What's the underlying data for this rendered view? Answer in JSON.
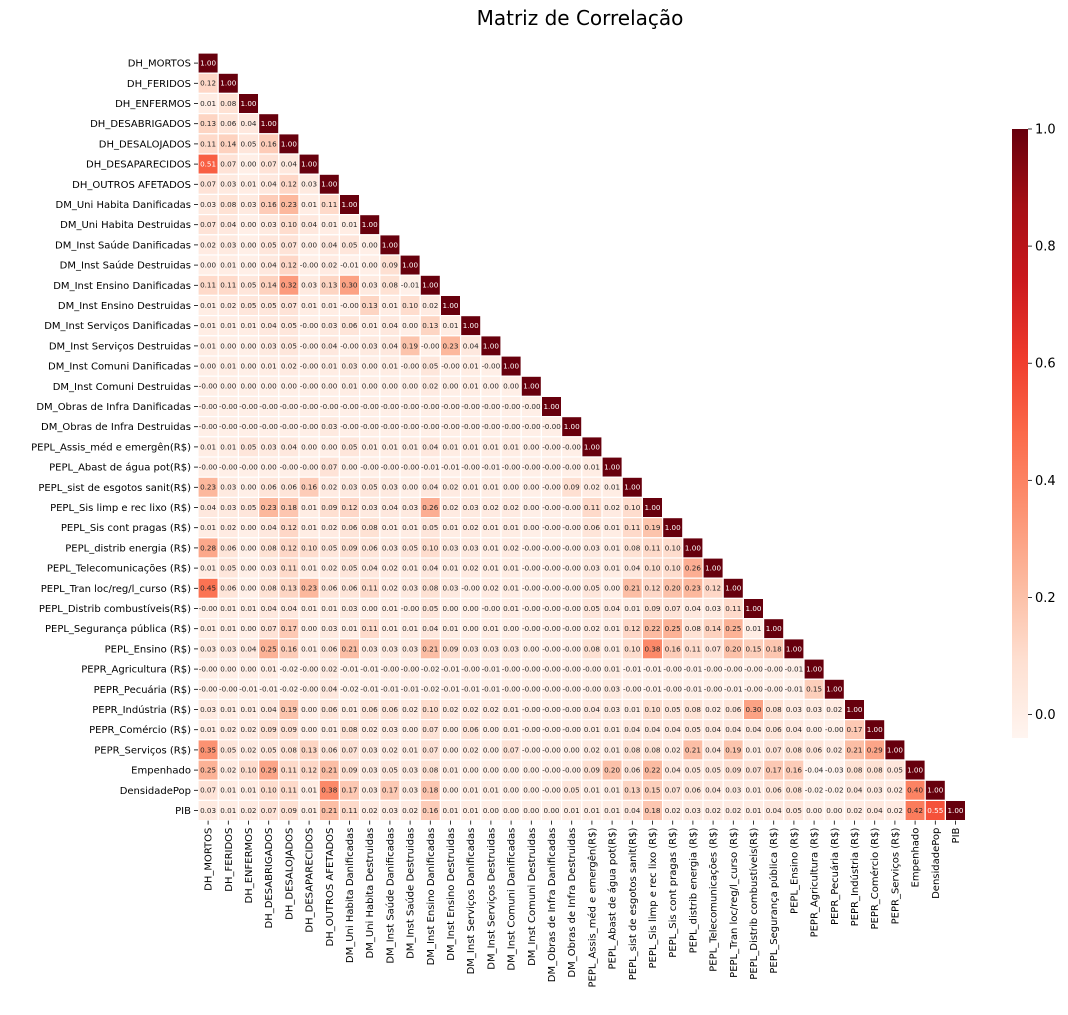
{
  "chart_data": {
    "type": "heatmap",
    "title": "Matriz de Correlação",
    "variables": [
      "DH_MORTOS",
      "DH_FERIDOS",
      "DH_ENFERMOS",
      "DH_DESABRIGADOS",
      "DH_DESALOJADOS",
      "DH_DESAPARECIDOS",
      "DH_OUTROS AFETADOS",
      "DM_Uni Habita Danificadas",
      "DM_Uni Habita Destruidas",
      "DM_Inst Saúde Danificadas",
      "DM_Inst Saúde Destruidas",
      "DM_Inst Ensino Danificadas",
      "DM_Inst Ensino Destruidas",
      "DM_Inst Serviços Danificadas",
      "DM_Inst Serviços Destruidas",
      "DM_Inst Comuni Danificadas",
      "DM_Inst Comuni Destruidas",
      "DM_Obras de Infra Danificadas",
      "DM_Obras de Infra Destruidas",
      "PEPL_Assis_méd e emergên(R$)",
      "PEPL_Abast de água pot(R$)",
      "PEPL_sist de esgotos sanit(R$)",
      "PEPL_Sis limp e rec lixo (R$)",
      "PEPL_Sis cont pragas (R$)",
      "PEPL_distrib energia (R$)",
      "PEPL_Telecomunicações (R$)",
      "PEPL_Tran loc/reg/l_curso (R$)",
      "PEPL_Distrib combustíveis(R$)",
      "PEPL_Segurança pública (R$)",
      "PEPL_Ensino (R$)",
      "PEPR_Agricultura (R$)",
      "PEPR_Pecuária (R$)",
      "PEPR_Indústria (R$)",
      "PEPR_Comércio (R$)",
      "PEPR_Serviços (R$)",
      "Empenhado",
      "DensidadePop",
      "PIB"
    ],
    "lower_triangle": [
      [
        "1.00"
      ],
      [
        "0.12",
        "1.00"
      ],
      [
        "0.01",
        "0.08",
        "1.00"
      ],
      [
        "0.13",
        "0.06",
        "0.04",
        "1.00"
      ],
      [
        "0.11",
        "0.14",
        "0.05",
        "0.16",
        "1.00"
      ],
      [
        "0.51",
        "0.07",
        "0.00",
        "0.07",
        "0.04",
        "1.00"
      ],
      [
        "0.07",
        "0.03",
        "0.01",
        "0.04",
        "0.12",
        "0.03",
        "1.00"
      ],
      [
        "0.03",
        "0.08",
        "0.03",
        "0.16",
        "0.23",
        "0.01",
        "0.11",
        "1.00"
      ],
      [
        "0.07",
        "0.04",
        "0.00",
        "0.03",
        "0.10",
        "0.04",
        "0.01",
        "0.01",
        "1.00"
      ],
      [
        "0.02",
        "0.03",
        "0.00",
        "0.05",
        "0.07",
        "0.00",
        "0.04",
        "0.05",
        "0.00",
        "1.00"
      ],
      [
        "0.00",
        "0.01",
        "0.00",
        "0.04",
        "0.12",
        "-0.00",
        "0.02",
        "-0.01",
        "0.00",
        "0.09",
        "1.00"
      ],
      [
        "0.11",
        "0.11",
        "0.05",
        "0.14",
        "0.32",
        "0.03",
        "0.13",
        "0.30",
        "0.03",
        "0.08",
        "-0.01",
        "1.00"
      ],
      [
        "0.01",
        "0.02",
        "0.05",
        "0.05",
        "0.07",
        "0.01",
        "0.01",
        "-0.00",
        "0.13",
        "0.01",
        "0.10",
        "0.02",
        "1.00"
      ],
      [
        "0.01",
        "0.01",
        "0.01",
        "0.04",
        "0.05",
        "-0.00",
        "0.03",
        "0.06",
        "0.01",
        "0.04",
        "0.00",
        "0.13",
        "0.01",
        "1.00"
      ],
      [
        "0.01",
        "0.00",
        "0.00",
        "0.03",
        "0.05",
        "-0.00",
        "0.04",
        "-0.00",
        "0.03",
        "0.04",
        "0.19",
        "-0.00",
        "0.23",
        "0.04",
        "1.00"
      ],
      [
        "0.00",
        "0.01",
        "0.00",
        "0.01",
        "0.02",
        "-0.00",
        "0.01",
        "0.03",
        "0.00",
        "0.01",
        "-0.00",
        "0.05",
        "-0.00",
        "0.01",
        "-0.00",
        "1.00"
      ],
      [
        "-0.00",
        "0.00",
        "0.00",
        "0.00",
        "0.00",
        "-0.00",
        "0.00",
        "0.01",
        "0.00",
        "0.00",
        "0.00",
        "0.02",
        "0.00",
        "0.01",
        "0.00",
        "0.00",
        "1.00"
      ],
      [
        "-0.00",
        "-0.00",
        "-0.00",
        "-0.00",
        "-0.00",
        "-0.00",
        "-0.00",
        "-0.00",
        "-0.00",
        "-0.00",
        "-0.00",
        "-0.00",
        "-0.00",
        "-0.00",
        "-0.00",
        "-0.00",
        "-0.00",
        "1.00"
      ],
      [
        "-0.00",
        "-0.00",
        "-0.00",
        "-0.00",
        "-0.00",
        "-0.00",
        "0.03",
        "-0.00",
        "-0.00",
        "-0.00",
        "-0.00",
        "-0.00",
        "-0.00",
        "-0.00",
        "-0.00",
        "-0.00",
        "-0.00",
        "-0.00",
        "1.00"
      ],
      [
        "0.01",
        "0.01",
        "0.05",
        "0.03",
        "0.04",
        "0.00",
        "0.00",
        "0.05",
        "0.01",
        "0.01",
        "0.01",
        "0.04",
        "0.01",
        "0.01",
        "0.01",
        "0.01",
        "0.00",
        "-0.00",
        "-0.00",
        "1.00"
      ],
      [
        "-0.00",
        "-0.00",
        "-0.00",
        "0.00",
        "-0.00",
        "-0.00",
        "0.07",
        "0.00",
        "-0.00",
        "-0.00",
        "-0.00",
        "-0.01",
        "-0.01",
        "-0.00",
        "-0.01",
        "-0.00",
        "-0.00",
        "-0.00",
        "-0.00",
        "0.01",
        "1.00"
      ],
      [
        "0.23",
        "0.03",
        "0.00",
        "0.06",
        "0.06",
        "0.16",
        "0.02",
        "0.03",
        "0.05",
        "0.03",
        "0.00",
        "0.04",
        "0.02",
        "0.01",
        "0.01",
        "0.00",
        "0.00",
        "-0.00",
        "0.09",
        "0.02",
        "0.01",
        "1.00"
      ],
      [
        "0.04",
        "0.03",
        "0.05",
        "0.23",
        "0.18",
        "0.01",
        "0.09",
        "0.12",
        "0.03",
        "0.04",
        "0.03",
        "0.26",
        "0.02",
        "0.03",
        "0.02",
        "0.02",
        "0.00",
        "-0.00",
        "-0.00",
        "0.11",
        "0.02",
        "0.10",
        "1.00"
      ],
      [
        "0.01",
        "0.02",
        "0.00",
        "0.04",
        "0.12",
        "0.01",
        "0.02",
        "0.06",
        "0.08",
        "0.01",
        "0.01",
        "0.05",
        "0.01",
        "0.02",
        "0.01",
        "0.01",
        "0.00",
        "-0.00",
        "-0.00",
        "0.06",
        "0.01",
        "0.11",
        "0.19",
        "1.00"
      ],
      [
        "0.28",
        "0.06",
        "0.00",
        "0.08",
        "0.12",
        "0.10",
        "0.05",
        "0.09",
        "0.06",
        "0.03",
        "0.05",
        "0.10",
        "0.03",
        "0.03",
        "0.01",
        "0.02",
        "-0.00",
        "-0.00",
        "-0.00",
        "0.03",
        "0.01",
        "0.08",
        "0.11",
        "0.10",
        "1.00"
      ],
      [
        "0.01",
        "0.05",
        "0.00",
        "0.03",
        "0.11",
        "0.01",
        "0.02",
        "0.05",
        "0.04",
        "0.02",
        "0.01",
        "0.04",
        "0.01",
        "0.02",
        "0.01",
        "0.01",
        "-0.00",
        "-0.00",
        "-0.00",
        "0.03",
        "0.01",
        "0.04",
        "0.10",
        "0.10",
        "0.26",
        "1.00"
      ],
      [
        "0.45",
        "0.06",
        "0.00",
        "0.08",
        "0.13",
        "0.23",
        "0.06",
        "0.06",
        "0.11",
        "0.02",
        "0.03",
        "0.08",
        "0.03",
        "-0.00",
        "0.02",
        "0.01",
        "-0.00",
        "-0.00",
        "-0.00",
        "0.05",
        "0.00",
        "0.21",
        "0.12",
        "0.20",
        "0.23",
        "0.12",
        "1.00"
      ],
      [
        "-0.00",
        "0.01",
        "0.01",
        "0.04",
        "0.04",
        "0.01",
        "0.01",
        "0.03",
        "0.00",
        "0.01",
        "-0.00",
        "0.05",
        "0.00",
        "0.00",
        "-0.00",
        "0.01",
        "-0.00",
        "-0.00",
        "-0.00",
        "0.05",
        "0.04",
        "0.01",
        "0.09",
        "0.07",
        "0.04",
        "0.03",
        "0.11",
        "1.00"
      ],
      [
        "0.01",
        "0.01",
        "0.00",
        "0.07",
        "0.17",
        "0.00",
        "0.03",
        "0.01",
        "0.11",
        "0.01",
        "0.01",
        "0.04",
        "0.01",
        "0.00",
        "0.01",
        "0.00",
        "-0.00",
        "-0.00",
        "-0.00",
        "0.02",
        "0.01",
        "0.12",
        "0.22",
        "0.25",
        "0.08",
        "0.14",
        "0.25",
        "0.01",
        "1.00"
      ],
      [
        "0.03",
        "0.03",
        "0.04",
        "0.25",
        "0.16",
        "0.01",
        "0.06",
        "0.21",
        "0.03",
        "0.03",
        "0.03",
        "0.21",
        "0.09",
        "0.03",
        "0.03",
        "0.03",
        "0.00",
        "-0.00",
        "-0.00",
        "0.08",
        "0.01",
        "0.10",
        "0.38",
        "0.16",
        "0.11",
        "0.07",
        "0.20",
        "0.15",
        "0.18",
        "1.00"
      ],
      [
        "-0.00",
        "0.00",
        "0.00",
        "0.01",
        "-0.02",
        "-0.00",
        "0.02",
        "-0.01",
        "-0.01",
        "-0.00",
        "-0.00",
        "-0.02",
        "-0.01",
        "-0.00",
        "-0.01",
        "-0.00",
        "-0.00",
        "-0.00",
        "-0.00",
        "-0.00",
        "0.01",
        "-0.01",
        "-0.01",
        "-0.00",
        "-0.01",
        "-0.00",
        "-0.00",
        "-0.00",
        "-0.00",
        "-0.01",
        "1.00"
      ],
      [
        "-0.00",
        "-0.00",
        "-0.01",
        "-0.01",
        "-0.02",
        "-0.00",
        "0.04",
        "-0.02",
        "-0.01",
        "-0.01",
        "-0.01",
        "-0.02",
        "-0.01",
        "-0.01",
        "-0.01",
        "-0.00",
        "-0.00",
        "-0.00",
        "-0.00",
        "-0.00",
        "0.03",
        "-0.00",
        "-0.01",
        "-0.00",
        "-0.01",
        "-0.00",
        "-0.01",
        "-0.00",
        "-0.00",
        "-0.01",
        "0.15",
        "1.00"
      ],
      [
        "0.03",
        "0.01",
        "0.01",
        "0.04",
        "0.19",
        "0.00",
        "0.06",
        "0.01",
        "0.06",
        "0.06",
        "0.02",
        "0.10",
        "0.02",
        "0.02",
        "0.02",
        "0.01",
        "-0.00",
        "-0.00",
        "-0.00",
        "0.04",
        "0.03",
        "0.01",
        "0.10",
        "0.05",
        "0.08",
        "0.02",
        "0.06",
        "0.30",
        "0.08",
        "0.03",
        "0.03",
        "0.02",
        "1.00"
      ],
      [
        "0.01",
        "0.02",
        "0.02",
        "0.09",
        "0.09",
        "0.00",
        "0.01",
        "0.08",
        "0.02",
        "0.03",
        "0.00",
        "0.07",
        "0.00",
        "0.06",
        "0.00",
        "0.01",
        "-0.00",
        "-0.00",
        "-0.00",
        "0.01",
        "0.01",
        "0.04",
        "0.04",
        "0.04",
        "0.05",
        "0.04",
        "0.04",
        "0.04",
        "0.06",
        "0.04",
        "0.00",
        "-0.00",
        "0.17",
        "1.00"
      ],
      [
        "0.35",
        "0.05",
        "0.02",
        "0.05",
        "0.08",
        "0.13",
        "0.06",
        "0.07",
        "0.03",
        "0.02",
        "0.01",
        "0.07",
        "0.00",
        "0.02",
        "0.00",
        "0.07",
        "-0.00",
        "-0.00",
        "0.00",
        "0.02",
        "0.01",
        "0.08",
        "0.08",
        "0.02",
        "0.21",
        "0.04",
        "0.19",
        "0.01",
        "0.07",
        "0.08",
        "0.06",
        "0.02",
        "0.21",
        "0.29",
        "1.00"
      ],
      [
        "0.25",
        "0.02",
        "0.10",
        "0.29",
        "0.11",
        "0.12",
        "0.21",
        "0.09",
        "0.03",
        "0.05",
        "0.03",
        "0.08",
        "0.01",
        "0.00",
        "0.00",
        "0.00",
        "0.00",
        "-0.00",
        "-0.00",
        "0.09",
        "0.20",
        "0.06",
        "0.22",
        "0.04",
        "0.05",
        "0.05",
        "0.09",
        "0.07",
        "0.17",
        "0.16",
        "-0.04",
        "-0.03",
        "0.08",
        "0.08",
        "0.05",
        "1.00"
      ],
      [
        "0.07",
        "0.01",
        "0.01",
        "0.10",
        "0.11",
        "0.01",
        "0.38",
        "0.17",
        "0.03",
        "0.17",
        "0.03",
        "0.18",
        "0.00",
        "0.01",
        "0.01",
        "0.00",
        "0.00",
        "-0.00",
        "0.05",
        "0.01",
        "0.01",
        "0.13",
        "0.15",
        "0.07",
        "0.06",
        "0.04",
        "0.03",
        "0.01",
        "0.06",
        "0.08",
        "-0.02",
        "-0.02",
        "0.04",
        "0.03",
        "0.02",
        "0.40",
        "1.00"
      ],
      [
        "0.03",
        "0.01",
        "0.02",
        "0.07",
        "0.09",
        "0.01",
        "0.21",
        "0.11",
        "0.02",
        "0.03",
        "0.02",
        "0.16",
        "0.01",
        "0.01",
        "0.00",
        "0.00",
        "0.00",
        "0.00",
        "0.01",
        "0.01",
        "0.01",
        "0.04",
        "0.18",
        "0.02",
        "0.03",
        "0.02",
        "0.02",
        "0.01",
        "0.04",
        "0.05",
        "0.00",
        "0.00",
        "0.02",
        "0.04",
        "0.02",
        "0.42",
        "0.55",
        "1.00"
      ]
    ],
    "colorbar": {
      "min": -0.04,
      "max": 1.0,
      "ticks": [
        "0.0",
        "0.2",
        "0.4",
        "0.6",
        "0.8",
        "1.0"
      ],
      "tick_values": [
        0,
        0.2,
        0.4,
        0.6,
        0.8,
        1.0
      ]
    },
    "colormap": "Reds",
    "mask": "upper-triangle",
    "colors": {
      "low": "#fff5f0",
      "mid": "#ef3b2c",
      "high": "#67000d"
    }
  }
}
